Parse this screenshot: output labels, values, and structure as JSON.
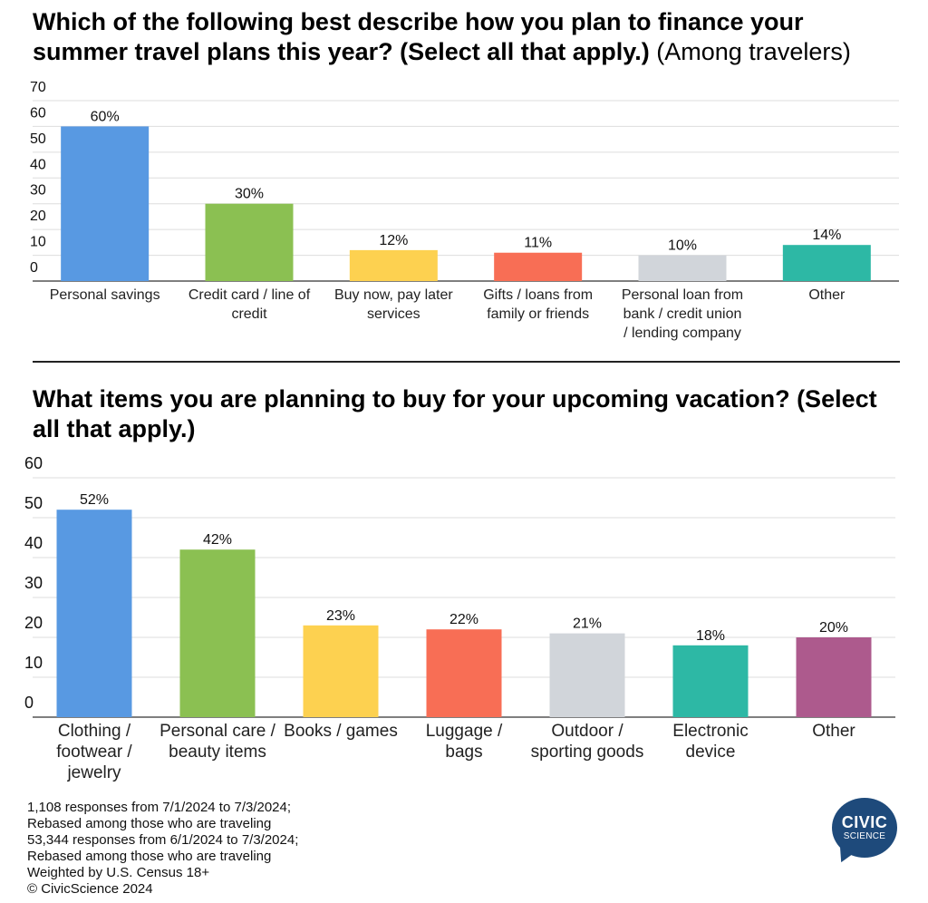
{
  "chart_data": [
    {
      "type": "bar",
      "title": "Which of the following best describe how you plan to finance your summer travel plans this year? (Select all that apply.)",
      "subtitle": "(Among travelers)",
      "categories": [
        [
          "Personal savings"
        ],
        [
          "Credit card / line of",
          "credit"
        ],
        [
          "Buy now, pay later",
          "services"
        ],
        [
          "Gifts / loans from",
          "family or friends"
        ],
        [
          "Personal loan from",
          "bank / credit union",
          "/ lending company"
        ],
        [
          "Other"
        ]
      ],
      "values": [
        60,
        30,
        12,
        11,
        10,
        14
      ],
      "data_labels": [
        "60%",
        "30%",
        "12%",
        "11%",
        "10%",
        "14%"
      ],
      "colors": [
        "#5899e2",
        "#8bc052",
        "#fdd150",
        "#f86e55",
        "#d1d5da",
        "#2db8a5"
      ],
      "ylim": [
        0,
        70
      ],
      "yticks": [
        "0",
        "10",
        "20",
        "30",
        "40",
        "50",
        "60",
        "70"
      ],
      "grid": true,
      "xlabel": "",
      "ylabel": ""
    },
    {
      "type": "bar",
      "title": "What items you are planning to buy for your upcoming vacation? (Select all that apply.)",
      "subtitle": "",
      "categories": [
        [
          "Clothing /",
          "footwear /",
          "jewelry"
        ],
        [
          "Personal care /",
          "beauty items"
        ],
        [
          "Books / games"
        ],
        [
          "Luggage /",
          "bags"
        ],
        [
          "Outdoor /",
          "sporting goods"
        ],
        [
          "Electronic",
          "device"
        ],
        [
          "Other"
        ]
      ],
      "values": [
        52,
        42,
        23,
        22,
        21,
        18,
        20
      ],
      "data_labels": [
        "52%",
        "42%",
        "23%",
        "22%",
        "21%",
        "18%",
        "20%"
      ],
      "colors": [
        "#5899e2",
        "#8bc052",
        "#fdd150",
        "#f86e55",
        "#d1d5da",
        "#2db8a5",
        "#ad5a8d"
      ],
      "ylim": [
        0,
        60
      ],
      "yticks": [
        "0",
        "10",
        "20",
        "30",
        "40",
        "50",
        "60"
      ],
      "grid": true,
      "xlabel": "",
      "ylabel": ""
    }
  ],
  "footer": {
    "lines": [
      "1,108 responses from 7/1/2024 to 7/3/2024;",
      "Rebased among those who are traveling",
      "53,344 responses from 6/1/2024 to 7/3/2024;",
      "Rebased among those who are traveling",
      "Weighted by U.S. Census 18+",
      "© CivicScience 2024"
    ]
  },
  "logo": {
    "line1": "CIVIC",
    "line2": "SCIENCE",
    "color": "#1e4a7b"
  }
}
